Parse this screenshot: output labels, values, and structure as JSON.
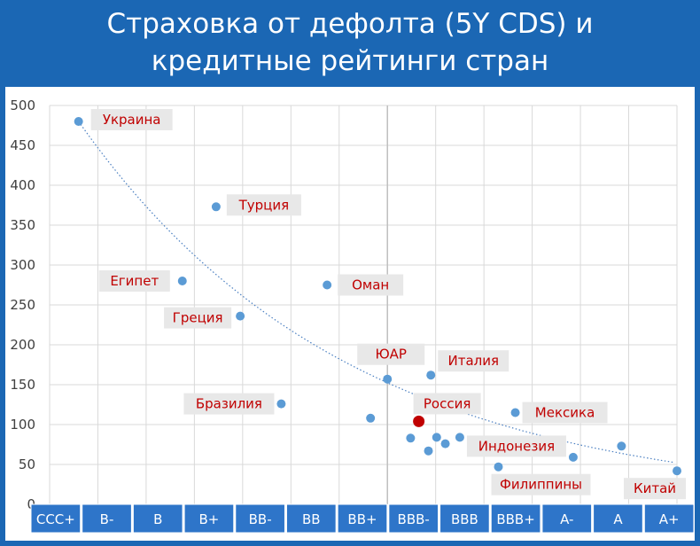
{
  "title_line1": "Страховка от дефолта (5Y CDS) и",
  "title_line2": "кредитные рейтинги стран",
  "colors": {
    "background": "#1b67b4",
    "point": "#5b9bd5",
    "highlight": "#c00000",
    "label_text": "#c00000",
    "label_bg": "#e8e8e8",
    "category_box": "#2e75c9"
  },
  "chart_data": {
    "type": "scatter",
    "title": "Страховка от дефолта (5Y CDS) и кредитные рейтинги стран",
    "xlabel": "",
    "ylabel": "",
    "categories": [
      "CCC+",
      "B-",
      "B",
      "B+",
      "BB-",
      "BB",
      "BB+",
      "BBB-",
      "BBB",
      "BBB+",
      "A-",
      "A",
      "A+"
    ],
    "ylim": [
      0,
      500
    ],
    "yticks": [
      0,
      50,
      100,
      150,
      200,
      250,
      300,
      350,
      400,
      450,
      500
    ],
    "grid": true,
    "trendline": "exponential, dotted",
    "points": [
      {
        "rating": "CCC+",
        "offset": 0.1,
        "y": 480,
        "label": "Украина"
      },
      {
        "rating": "B+",
        "offset": -0.05,
        "y": 373,
        "label": "Турция"
      },
      {
        "rating": "B",
        "offset": 0.25,
        "y": 280,
        "label": "Египет"
      },
      {
        "rating": "B+",
        "offset": 0.45,
        "y": 236,
        "label": "Греция"
      },
      {
        "rating": "BB",
        "offset": 0.25,
        "y": 275,
        "label": "Оман"
      },
      {
        "rating": "BB+",
        "offset": 0.5,
        "y": 157,
        "label": "ЮАР"
      },
      {
        "rating": "BB-",
        "offset": 0.3,
        "y": 126,
        "label": "Бразилия"
      },
      {
        "rating": "BB+",
        "offset": 0.15,
        "y": 108,
        "label": ""
      },
      {
        "rating": "BBB-",
        "offset": 0.4,
        "y": 162,
        "label": "Италия"
      },
      {
        "rating": "BBB-",
        "offset": 0.15,
        "y": 104,
        "label": "Россия",
        "highlight": true
      },
      {
        "rating": "BBB-",
        "offset": -0.02,
        "y": 83,
        "label": ""
      },
      {
        "rating": "BBB-",
        "offset": 0.35,
        "y": 67,
        "label": ""
      },
      {
        "rating": "BBB-",
        "offset": 0.52,
        "y": 84,
        "label": ""
      },
      {
        "rating": "BBB",
        "offset": -0.3,
        "y": 76,
        "label": ""
      },
      {
        "rating": "BBB",
        "offset": 0.0,
        "y": 84,
        "label": "Индонезия"
      },
      {
        "rating": "BBB",
        "offset": 0.8,
        "y": 47,
        "label": "Филиппины"
      },
      {
        "rating": "BBB+",
        "offset": 0.15,
        "y": 115,
        "label": "Мексика"
      },
      {
        "rating": "A-",
        "offset": 0.35,
        "y": 59,
        "label": ""
      },
      {
        "rating": "A",
        "offset": 0.35,
        "y": 73,
        "label": ""
      },
      {
        "rating": "A+",
        "offset": 0.5,
        "y": 42,
        "label": "Китай"
      }
    ]
  }
}
